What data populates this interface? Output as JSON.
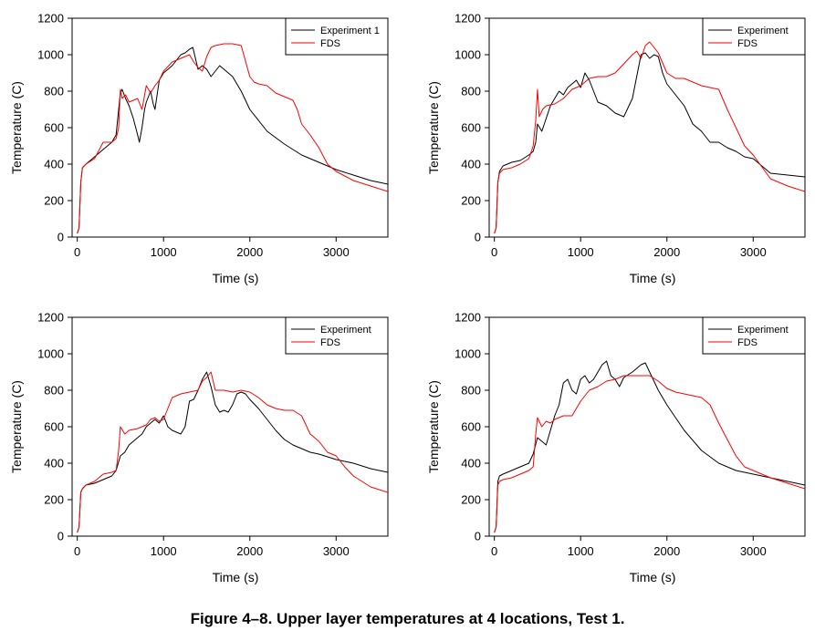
{
  "caption": "Figure 4–8.  Upper layer temperatures at 4 locations, Test 1.",
  "colors": {
    "experiment": "#000000",
    "fds": "#ff0000"
  },
  "chart_data": [
    {
      "type": "line",
      "xlabel": "Time (s)",
      "ylabel": "Temperature (C)",
      "xlim": [
        -60,
        3600
      ],
      "ylim": [
        0,
        1200
      ],
      "xticks": [
        0,
        1000,
        2000,
        3000
      ],
      "yticks": [
        0,
        200,
        400,
        600,
        800,
        1000,
        1200
      ],
      "legend": "top-right",
      "series": [
        {
          "name": "Experiment 1",
          "color": "#000000",
          "x": [
            0,
            20,
            40,
            60,
            100,
            150,
            200,
            300,
            400,
            450,
            480,
            500,
            520,
            560,
            600,
            650,
            700,
            720,
            750,
            780,
            800,
            850,
            880,
            900,
            950,
            1000,
            1100,
            1200,
            1250,
            1300,
            1340,
            1380,
            1400,
            1450,
            1500,
            1550,
            1600,
            1650,
            1700,
            1800,
            1900,
            2000,
            2200,
            2400,
            2600,
            2800,
            3000,
            3200,
            3400,
            3600
          ],
          "y": [
            20,
            50,
            300,
            380,
            400,
            420,
            440,
            480,
            520,
            560,
            700,
            790,
            810,
            760,
            720,
            650,
            560,
            520,
            600,
            700,
            740,
            800,
            730,
            700,
            860,
            900,
            940,
            1000,
            1010,
            1030,
            1040,
            960,
            920,
            940,
            920,
            880,
            910,
            940,
            920,
            880,
            800,
            700,
            580,
            510,
            450,
            410,
            370,
            340,
            310,
            290
          ]
        },
        {
          "name": "FDS",
          "color": "#ff0000",
          "x": [
            0,
            20,
            40,
            60,
            100,
            200,
            300,
            400,
            450,
            480,
            500,
            520,
            560,
            600,
            700,
            750,
            800,
            850,
            900,
            950,
            1000,
            1100,
            1200,
            1300,
            1350,
            1400,
            1450,
            1500,
            1550,
            1600,
            1700,
            1800,
            1900,
            2000,
            2050,
            2100,
            2200,
            2300,
            2400,
            2500,
            2550,
            2600,
            2700,
            2800,
            2900,
            3000,
            3200,
            3400,
            3600
          ],
          "y": [
            20,
            50,
            300,
            380,
            400,
            430,
            520,
            520,
            540,
            600,
            810,
            760,
            780,
            740,
            760,
            700,
            830,
            790,
            830,
            860,
            910,
            960,
            980,
            1000,
            960,
            930,
            910,
            990,
            1040,
            1050,
            1060,
            1060,
            1050,
            880,
            850,
            840,
            830,
            790,
            770,
            750,
            700,
            620,
            560,
            490,
            400,
            360,
            310,
            280,
            250
          ]
        }
      ]
    },
    {
      "type": "line",
      "xlabel": "Time (s)",
      "ylabel": "Temperature (C)",
      "xlim": [
        -60,
        3600
      ],
      "ylim": [
        0,
        1200
      ],
      "xticks": [
        0,
        1000,
        2000,
        3000
      ],
      "yticks": [
        0,
        200,
        400,
        600,
        800,
        1000,
        1200
      ],
      "legend": "top-right",
      "series": [
        {
          "name": "Experiment",
          "color": "#000000",
          "x": [
            0,
            20,
            40,
            60,
            100,
            200,
            300,
            400,
            450,
            480,
            500,
            550,
            600,
            650,
            700,
            750,
            800,
            850,
            900,
            950,
            1000,
            1050,
            1100,
            1150,
            1200,
            1300,
            1400,
            1500,
            1600,
            1700,
            1750,
            1800,
            1850,
            1900,
            1950,
            2000,
            2100,
            2200,
            2300,
            2400,
            2500,
            2600,
            2700,
            2800,
            2900,
            3000,
            3200,
            3400,
            3600
          ],
          "y": [
            20,
            50,
            300,
            360,
            390,
            410,
            420,
            450,
            470,
            520,
            620,
            580,
            650,
            720,
            760,
            800,
            780,
            820,
            840,
            860,
            820,
            900,
            860,
            800,
            740,
            720,
            680,
            660,
            760,
            1000,
            1010,
            980,
            1000,
            990,
            900,
            840,
            780,
            720,
            620,
            580,
            520,
            520,
            490,
            470,
            440,
            430,
            350,
            340,
            330
          ]
        },
        {
          "name": "FDS",
          "color": "#ff0000",
          "x": [
            0,
            20,
            40,
            60,
            100,
            200,
            300,
            400,
            450,
            480,
            500,
            520,
            560,
            600,
            700,
            800,
            900,
            1000,
            1100,
            1200,
            1300,
            1400,
            1500,
            1600,
            1650,
            1700,
            1750,
            1800,
            1850,
            1900,
            2000,
            2100,
            2200,
            2300,
            2400,
            2500,
            2600,
            2700,
            2800,
            2900,
            3000,
            3200,
            3400,
            3600
          ],
          "y": [
            20,
            50,
            300,
            350,
            370,
            380,
            400,
            430,
            500,
            640,
            810,
            660,
            700,
            720,
            730,
            760,
            810,
            830,
            870,
            880,
            880,
            900,
            950,
            1000,
            1020,
            980,
            1050,
            1070,
            1040,
            1010,
            900,
            870,
            870,
            850,
            830,
            820,
            810,
            700,
            600,
            500,
            450,
            320,
            280,
            250
          ]
        }
      ]
    },
    {
      "type": "line",
      "xlabel": "Time (s)",
      "ylabel": "Temperature (C)",
      "xlim": [
        -60,
        3600
      ],
      "ylim": [
        0,
        1200
      ],
      "xticks": [
        0,
        1000,
        2000,
        3000
      ],
      "yticks": [
        0,
        200,
        400,
        600,
        800,
        1000,
        1200
      ],
      "legend": "top-right",
      "series": [
        {
          "name": "Experiment",
          "color": "#000000",
          "x": [
            0,
            20,
            40,
            60,
            100,
            200,
            300,
            400,
            450,
            500,
            550,
            600,
            700,
            750,
            800,
            850,
            900,
            950,
            1000,
            1050,
            1100,
            1150,
            1200,
            1250,
            1300,
            1350,
            1400,
            1450,
            1500,
            1550,
            1600,
            1650,
            1700,
            1750,
            1800,
            1850,
            1900,
            1950,
            2000,
            2100,
            2200,
            2300,
            2400,
            2500,
            2600,
            2700,
            2800,
            3000,
            3200,
            3400,
            3600
          ],
          "y": [
            20,
            50,
            240,
            260,
            280,
            290,
            310,
            330,
            360,
            440,
            460,
            500,
            540,
            560,
            600,
            620,
            640,
            620,
            660,
            600,
            580,
            570,
            560,
            600,
            740,
            750,
            800,
            860,
            900,
            820,
            720,
            680,
            690,
            680,
            720,
            780,
            790,
            780,
            750,
            700,
            640,
            580,
            530,
            500,
            480,
            460,
            450,
            420,
            400,
            370,
            350
          ]
        },
        {
          "name": "FDS",
          "color": "#ff0000",
          "x": [
            0,
            20,
            40,
            60,
            100,
            200,
            300,
            400,
            450,
            480,
            500,
            550,
            600,
            700,
            750,
            800,
            850,
            900,
            950,
            1000,
            1050,
            1100,
            1200,
            1300,
            1400,
            1450,
            1500,
            1550,
            1600,
            1700,
            1800,
            1900,
            2000,
            2100,
            2200,
            2300,
            2400,
            2500,
            2600,
            2700,
            2800,
            2900,
            3000,
            3100,
            3200,
            3400,
            3600
          ],
          "y": [
            20,
            50,
            240,
            260,
            280,
            300,
            340,
            350,
            360,
            470,
            600,
            560,
            580,
            590,
            600,
            610,
            640,
            650,
            630,
            640,
            700,
            760,
            780,
            790,
            800,
            850,
            870,
            900,
            800,
            800,
            790,
            800,
            790,
            760,
            720,
            700,
            690,
            690,
            660,
            560,
            520,
            460,
            440,
            380,
            330,
            270,
            240
          ]
        }
      ]
    },
    {
      "type": "line",
      "xlabel": "Time (s)",
      "ylabel": "Temperature (C)",
      "xlim": [
        -60,
        3600
      ],
      "ylim": [
        0,
        1200
      ],
      "xticks": [
        0,
        1000,
        2000,
        3000
      ],
      "yticks": [
        0,
        200,
        400,
        600,
        800,
        1000,
        1200
      ],
      "legend": "top-right",
      "series": [
        {
          "name": "Experiment",
          "color": "#000000",
          "x": [
            0,
            20,
            40,
            60,
            100,
            200,
            300,
            400,
            450,
            500,
            550,
            600,
            700,
            750,
            800,
            850,
            900,
            950,
            1000,
            1050,
            1100,
            1150,
            1200,
            1250,
            1300,
            1350,
            1400,
            1450,
            1500,
            1600,
            1700,
            1750,
            1800,
            1900,
            2000,
            2200,
            2400,
            2600,
            2800,
            3000,
            3200,
            3400,
            3600
          ],
          "y": [
            20,
            50,
            300,
            330,
            340,
            360,
            380,
            400,
            450,
            540,
            520,
            500,
            660,
            720,
            840,
            860,
            800,
            780,
            860,
            880,
            840,
            860,
            900,
            940,
            960,
            880,
            860,
            820,
            870,
            900,
            940,
            950,
            900,
            800,
            720,
            580,
            470,
            400,
            360,
            340,
            320,
            300,
            280
          ]
        },
        {
          "name": "FDS",
          "color": "#ff0000",
          "x": [
            0,
            20,
            40,
            60,
            100,
            200,
            300,
            400,
            450,
            480,
            500,
            550,
            600,
            650,
            700,
            800,
            900,
            1000,
            1100,
            1200,
            1300,
            1400,
            1500,
            1600,
            1700,
            1800,
            1900,
            2000,
            2100,
            2200,
            2300,
            2400,
            2500,
            2600,
            2700,
            2800,
            2900,
            3000,
            3200,
            3400,
            3600
          ],
          "y": [
            20,
            50,
            280,
            300,
            310,
            320,
            340,
            360,
            380,
            560,
            650,
            600,
            630,
            620,
            640,
            660,
            660,
            740,
            800,
            820,
            850,
            860,
            880,
            880,
            880,
            880,
            850,
            810,
            790,
            780,
            770,
            760,
            720,
            620,
            530,
            440,
            380,
            360,
            320,
            290,
            260
          ]
        }
      ]
    }
  ]
}
